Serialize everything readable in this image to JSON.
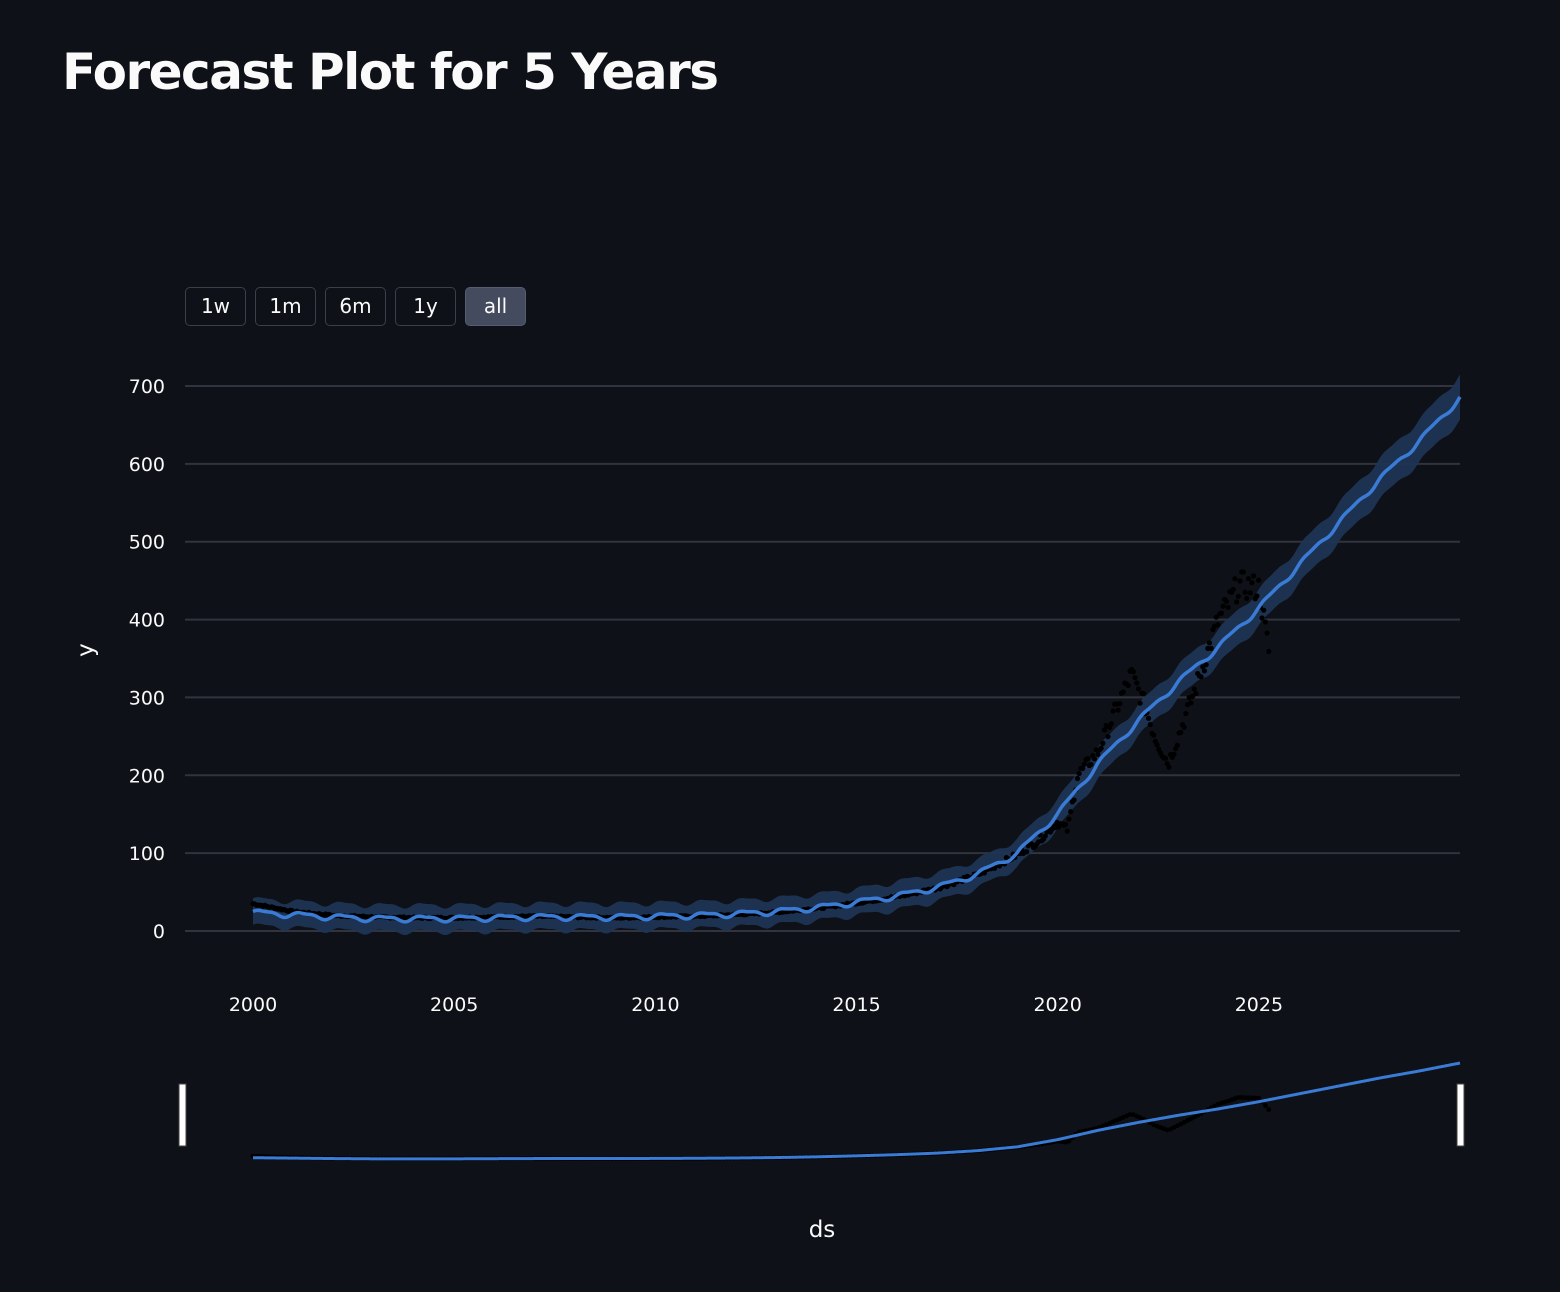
{
  "page": {
    "title": "Forecast Plot for 5 Years"
  },
  "range_selector": {
    "buttons": [
      {
        "label": "1w",
        "active": false
      },
      {
        "label": "1m",
        "active": false
      },
      {
        "label": "6m",
        "active": false
      },
      {
        "label": "1y",
        "active": false
      },
      {
        "label": "all",
        "active": true
      }
    ]
  },
  "colors": {
    "background": "#0e1117",
    "forecast_line": "#3a7bd5",
    "uncertainty_band": "#1e3553",
    "actual_points": "#000000",
    "gridline": "#31333f",
    "text": "#fafafa"
  },
  "chart_data": {
    "type": "line",
    "title": "",
    "xlabel": "ds",
    "ylabel": "y",
    "x_ticks": [
      "2000",
      "2005",
      "2010",
      "2015",
      "2020",
      "2025"
    ],
    "y_ticks": [
      "0",
      "100",
      "200",
      "300",
      "400",
      "500",
      "600",
      "700"
    ],
    "xlim": [
      "2000-01-01",
      "2030-01-01"
    ],
    "ylim": [
      0,
      700
    ],
    "grid": true,
    "has_rangeslider": true,
    "series": [
      {
        "kind": "forecast",
        "x": [
          "2000-01-01",
          "2001-01-01",
          "2002-01-01",
          "2003-01-01",
          "2004-01-01",
          "2005-01-01",
          "2006-01-01",
          "2007-01-01",
          "2008-01-01",
          "2009-01-01",
          "2010-01-01",
          "2011-01-01",
          "2012-01-01",
          "2013-01-01",
          "2014-01-01",
          "2015-01-01",
          "2016-01-01",
          "2017-01-01",
          "2018-01-01",
          "2019-01-01",
          "2020-01-01",
          "2021-01-01",
          "2022-01-01",
          "2023-01-01",
          "2024-01-01",
          "2025-01-01",
          "2026-01-01",
          "2027-01-01",
          "2028-01-01",
          "2029-01-01",
          "2030-01-01"
        ],
        "yhat": [
          24,
          21,
          18,
          16,
          16,
          16,
          17,
          18,
          18,
          18,
          19,
          20,
          22,
          25,
          30,
          37,
          45,
          56,
          73,
          100,
          150,
          215,
          270,
          320,
          365,
          415,
          470,
          525,
          580,
          630,
          685
        ],
        "yhat_lower": [
          7,
          4,
          1,
          -1,
          -1,
          -1,
          0,
          1,
          1,
          1,
          2,
          3,
          5,
          8,
          13,
          20,
          27,
          38,
          55,
          82,
          131,
          195,
          250,
          299,
          343,
          392,
          446,
          500,
          554,
          603,
          656
        ],
        "yhat_upper": [
          41,
          38,
          35,
          33,
          33,
          33,
          34,
          35,
          35,
          35,
          36,
          37,
          39,
          42,
          47,
          54,
          63,
          74,
          91,
          118,
          169,
          235,
          290,
          341,
          387,
          438,
          494,
          550,
          606,
          657,
          714
        ]
      },
      {
        "kind": "actual",
        "x": [
          "2000-01-01",
          "2001-01-01",
          "2002-01-01",
          "2003-01-01",
          "2004-01-01",
          "2005-01-01",
          "2006-01-01",
          "2007-01-01",
          "2008-01-01",
          "2009-01-01",
          "2010-01-01",
          "2011-01-01",
          "2012-01-01",
          "2013-01-01",
          "2014-01-01",
          "2015-01-01",
          "2016-01-01",
          "2017-01-01",
          "2018-01-01",
          "2019-01-01",
          "2019-07-01",
          "2020-01-01",
          "2020-04-01",
          "2020-07-01",
          "2021-01-01",
          "2021-06-01",
          "2021-11-01",
          "2022-03-01",
          "2022-06-01",
          "2022-10-01",
          "2023-01-01",
          "2023-06-01",
          "2024-01-01",
          "2024-04-01",
          "2024-07-01",
          "2025-01-01",
          "2025-04-01"
        ],
        "y": [
          35,
          25,
          20,
          18,
          17,
          17,
          18,
          19,
          18,
          17,
          18,
          19,
          21,
          24,
          29,
          36,
          44,
          55,
          72,
          98,
          115,
          140,
          130,
          200,
          230,
          280,
          330,
          290,
          250,
          215,
          250,
          310,
          400,
          420,
          445,
          440,
          360
        ]
      }
    ]
  }
}
